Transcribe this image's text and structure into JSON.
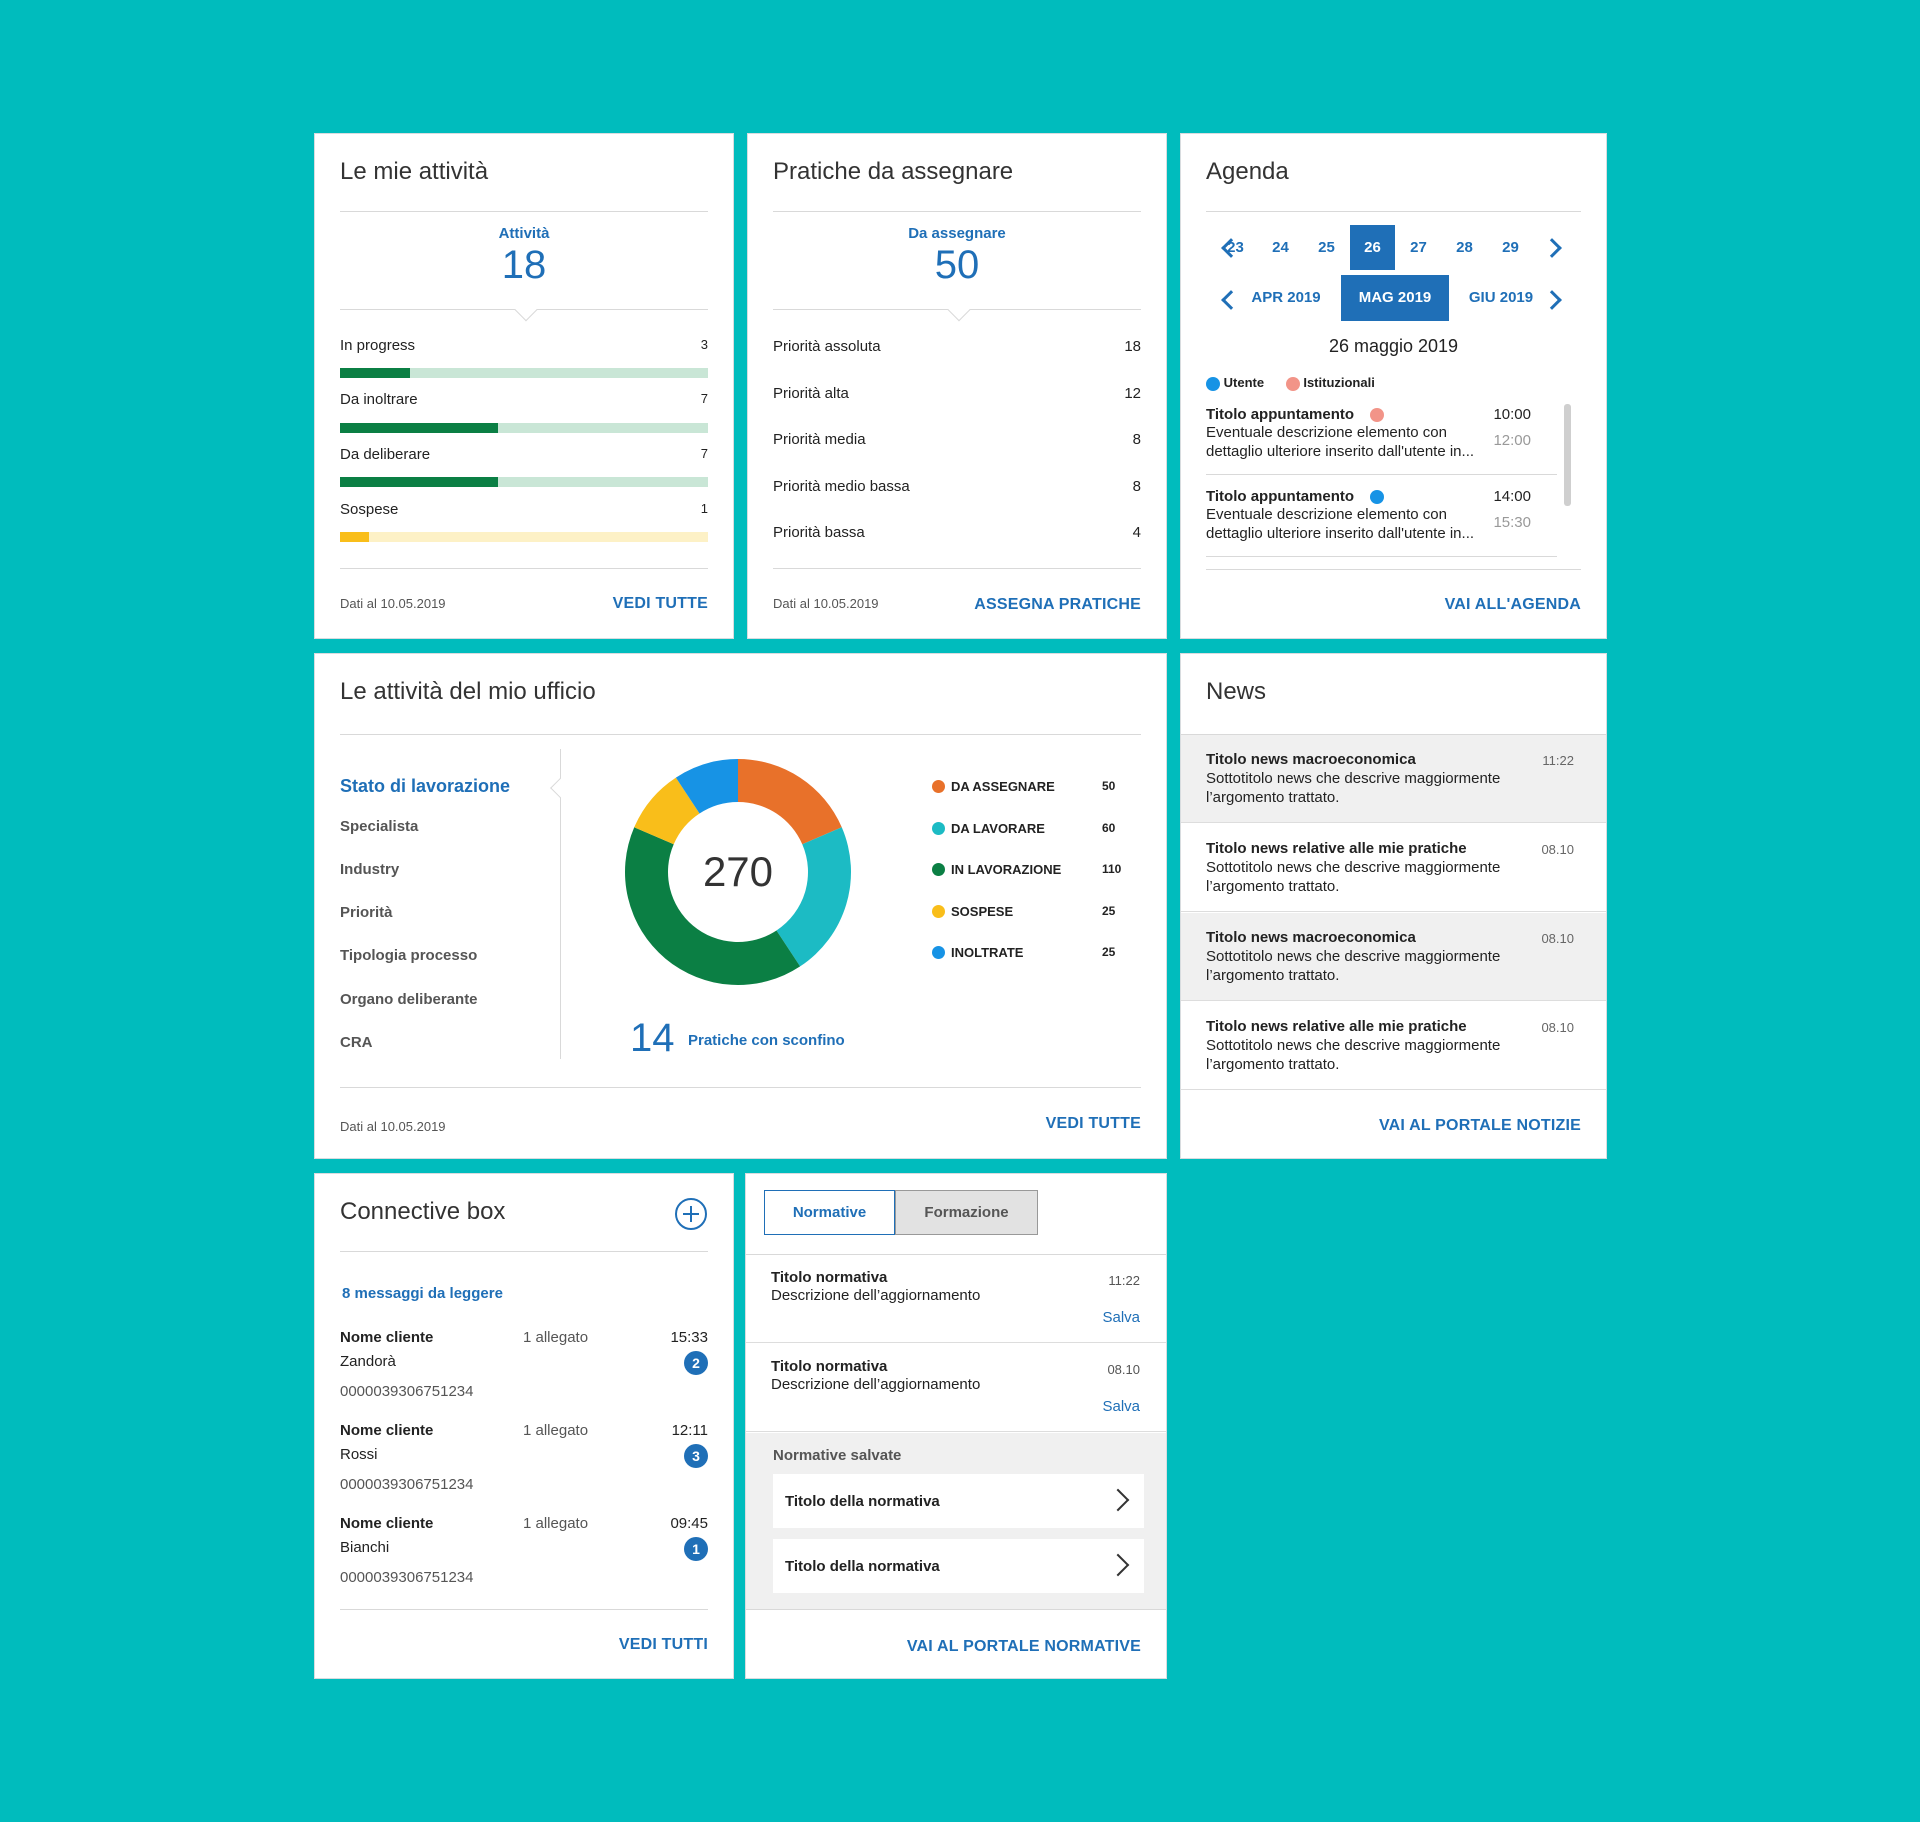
{
  "colors": {
    "accent": "#1f6fb7",
    "background": "#00bcbd",
    "green": "#0b7f44",
    "green_light": "#c9e6d6",
    "yellow": "#f9be1a",
    "yellow_light": "#fdf1c6",
    "pink": "#f29488",
    "blue_dot": "#1793e5"
  },
  "attivita": {
    "title": "Le mie attività",
    "kpi_label": "Attività",
    "kpi_value": "18",
    "rows": [
      {
        "label": "In progress",
        "value": "3",
        "ratio": 0.19,
        "color": "green"
      },
      {
        "label": "Da inoltrare",
        "value": "7",
        "ratio": 0.43,
        "color": "green"
      },
      {
        "label": "Da deliberare",
        "value": "7",
        "ratio": 0.43,
        "color": "green"
      },
      {
        "label": "Sospese",
        "value": "1",
        "ratio": 0.08,
        "color": "yellow"
      }
    ],
    "date": "Dati al 10.05.2019",
    "link": "VEDI TUTTE"
  },
  "pratiche": {
    "title": "Pratiche da assegnare",
    "kpi_label": "Da assegnare",
    "kpi_value": "50",
    "rows": [
      {
        "label": "Priorità assoluta",
        "value": "18"
      },
      {
        "label": "Priorità alta",
        "value": "12"
      },
      {
        "label": "Priorità media",
        "value": "8"
      },
      {
        "label": "Priorità medio bassa",
        "value": "8"
      },
      {
        "label": "Priorità bassa",
        "value": "4"
      }
    ],
    "date": "Dati al 10.05.2019",
    "link": "ASSEGNA PRATICHE"
  },
  "agenda": {
    "title": "Agenda",
    "days": [
      "23",
      "24",
      "25",
      "26",
      "27",
      "28",
      "29"
    ],
    "selected_day": "26",
    "months": [
      "APR 2019",
      "MAG 2019",
      "GIU 2019"
    ],
    "selected_month": "MAG 2019",
    "date_label": "26 maggio 2019",
    "legend": [
      {
        "label": "Utente",
        "color": "blue_dot"
      },
      {
        "label": "Istituzionali",
        "color": "pink"
      }
    ],
    "appointments": [
      {
        "title": "Titolo appuntamento",
        "desc": "Eventuale descrizione elemento con dettaglio ulteriore inserito dall'utente in...",
        "start": "10:00",
        "end": "12:00",
        "dot": "pink"
      },
      {
        "title": "Titolo appuntamento",
        "desc": "Eventuale descrizione elemento con dettaglio ulteriore inserito dall'utente in...",
        "start": "14:00",
        "end": "15:30",
        "dot": "blue_dot"
      }
    ],
    "link": "VAI ALL'AGENDA"
  },
  "ufficio": {
    "title": "Le attività del mio ufficio",
    "tabs": [
      "Stato di lavorazione",
      "Specialista",
      "Industry",
      "Priorità",
      "Tipologia processo",
      "Organo deliberante",
      "CRA"
    ],
    "active_tab": "Stato di lavorazione",
    "sconfino_value": "14",
    "sconfino_label": "Pratiche con sconfino",
    "date": "Dati al 10.05.2019",
    "link": "VEDI TUTTE"
  },
  "chart_data": {
    "type": "pie",
    "donut": true,
    "center_label": "270",
    "categories": [
      "DA ASSEGNARE",
      "DA LAVORARE",
      "IN LAVORAZIONE",
      "SOSPESE",
      "INOLTRATE"
    ],
    "values": [
      50,
      60,
      110,
      25,
      25
    ],
    "colors": [
      "#e8712a",
      "#1cbbc4",
      "#0b7f44",
      "#f9be1a",
      "#1793e5"
    ],
    "legend_position": "right"
  },
  "news": {
    "title": "News",
    "items": [
      {
        "title": "Titolo news macroeconomica",
        "sub": "Sottotitolo news che descrive maggiormente l’argomento trattato.",
        "time": "11:22",
        "shaded": true
      },
      {
        "title": "Titolo news relative alle mie pratiche",
        "sub": "Sottotitolo news che descrive maggiormente l’argomento trattato.",
        "time": "08.10",
        "shaded": false
      },
      {
        "title": "Titolo news macroeconomica",
        "sub": "Sottotitolo news che descrive maggiormente l’argomento trattato.",
        "time": "08.10",
        "shaded": true
      },
      {
        "title": "Titolo news relative alle mie pratiche",
        "sub": "Sottotitolo news che descrive maggiormente l’argomento trattato.",
        "time": "08.10",
        "shaded": false
      }
    ],
    "link": "VAI AL PORTALE NOTIZIE"
  },
  "connective": {
    "title": "Connective box",
    "unread": "8 messaggi da leggere",
    "messages": [
      {
        "name": "Nome cliente",
        "client": "Zandorà",
        "id": "0000039306751234",
        "attach": "1 allegato",
        "time": "15:33",
        "badge": "2"
      },
      {
        "name": "Nome cliente",
        "client": "Rossi",
        "id": "0000039306751234",
        "attach": "1 allegato",
        "time": "12:11",
        "badge": "3"
      },
      {
        "name": "Nome cliente",
        "client": "Bianchi",
        "id": "0000039306751234",
        "attach": "1 allegato",
        "time": "09:45",
        "badge": "1"
      }
    ],
    "link": "VEDI TUTTI"
  },
  "normative": {
    "tabs": [
      "Normative",
      "Formazione"
    ],
    "active_tab": "Normative",
    "items": [
      {
        "title": "Titolo normativa",
        "desc": "Descrizione dell’aggiornamento",
        "time": "11:22",
        "action": "Salva"
      },
      {
        "title": "Titolo normativa",
        "desc": "Descrizione dell’aggiornamento",
        "time": "08.10",
        "action": "Salva"
      }
    ],
    "saved_title": "Normative salvate",
    "saved": [
      "Titolo della normativa",
      "Titolo della normativa"
    ],
    "link": "VAI AL PORTALE NORMATIVE"
  }
}
